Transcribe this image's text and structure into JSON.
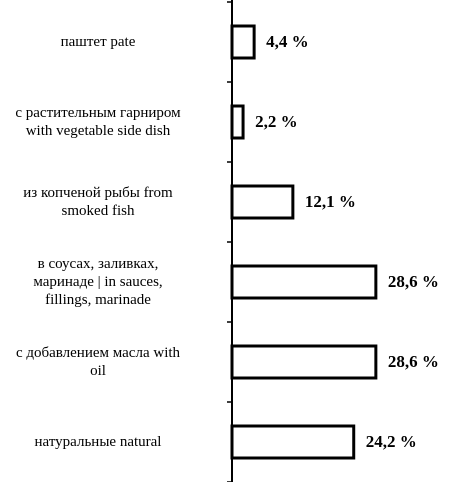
{
  "chart_data": {
    "type": "bar",
    "orientation": "horizontal",
    "categories": [
      "паштет   pate",
      "с растительным гарниром\nwith vegetable side dish",
      "из копченой рыбы   from\nsmoked fish",
      "в соусах, заливках,\nмаринаде | in sauces,\nfillings, marinade",
      "с добавлением масла   with\noil",
      "натуральные  natural"
    ],
    "values": [
      4.4,
      2.2,
      12.1,
      28.6,
      28.6,
      24.2
    ],
    "value_labels": [
      "4,4 %",
      "2,2 %",
      "12,1 %",
      "28,6 %",
      "28,6 %",
      "24,2 %"
    ],
    "color": "#ffffff"
  }
}
